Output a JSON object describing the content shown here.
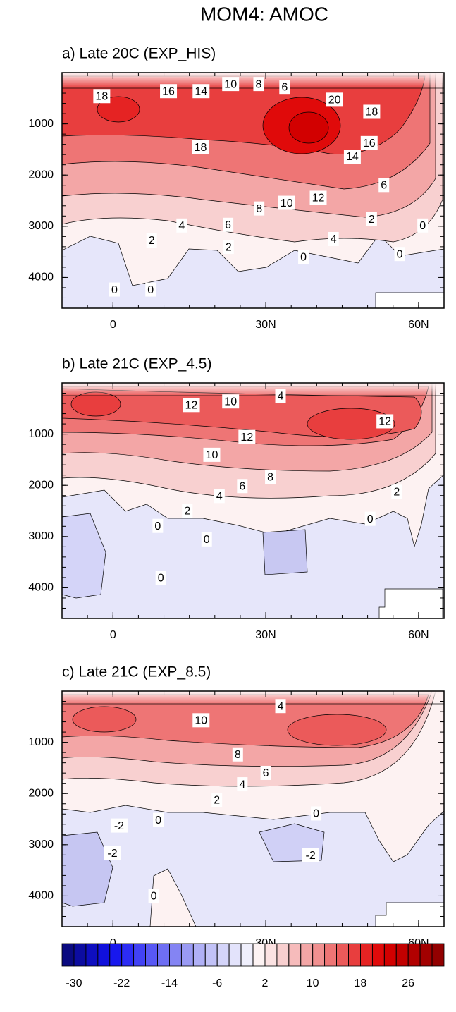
{
  "title": "MOM4: AMOC",
  "chart_data": [
    {
      "type": "contour",
      "title": "a) Late 20C (EXP_HIS)",
      "xlim": [
        -10,
        65
      ],
      "xticks": [
        0,
        {
          "value": 30,
          "label": "30N"
        },
        {
          "value": 60,
          "label": "60N"
        }
      ],
      "ylim": [
        4600,
        0
      ],
      "yticks": [
        1000,
        2000,
        3000,
        4000
      ],
      "contour_labels": [
        {
          "x": -2.2,
          "y": 458,
          "value": 18
        },
        {
          "x": 10.9,
          "y": 361,
          "value": 16
        },
        {
          "x": 17.3,
          "y": 361,
          "value": 14
        },
        {
          "x": 23.1,
          "y": 222,
          "value": 10
        },
        {
          "x": 28.6,
          "y": 222,
          "value": 8
        },
        {
          "x": 33.7,
          "y": 278,
          "value": 6
        },
        {
          "x": 43.5,
          "y": 528,
          "value": 20
        },
        {
          "x": 50.8,
          "y": 764,
          "value": 18
        },
        {
          "x": 50.3,
          "y": 1375,
          "value": 16
        },
        {
          "x": 17.2,
          "y": 1458,
          "value": 18
        },
        {
          "x": 47,
          "y": 1639,
          "value": 14
        },
        {
          "x": 53.2,
          "y": 2194,
          "value": 6
        },
        {
          "x": 40.3,
          "y": 2444,
          "value": 12
        },
        {
          "x": 34.1,
          "y": 2542,
          "value": 10
        },
        {
          "x": 28.7,
          "y": 2653,
          "value": 8
        },
        {
          "x": 13.5,
          "y": 2986,
          "value": 4
        },
        {
          "x": 22.6,
          "y": 2972,
          "value": 6
        },
        {
          "x": 50.8,
          "y": 2861,
          "value": 2
        },
        {
          "x": 43.3,
          "y": 3250,
          "value": 4
        },
        {
          "x": 60.8,
          "y": 2986,
          "value": 0
        },
        {
          "x": 7.6,
          "y": 3278,
          "value": 2
        },
        {
          "x": 56.3,
          "y": 3542,
          "value": 0
        },
        {
          "x": 22.7,
          "y": 3403,
          "value": 2
        },
        {
          "x": 37.4,
          "y": 3597,
          "value": 0
        },
        {
          "x": 0.3,
          "y": 4236,
          "value": 0
        },
        {
          "x": 7.4,
          "y": 4236,
          "value": 0
        }
      ]
    },
    {
      "type": "contour",
      "title": "b) Late 21C (EXP_4.5)",
      "xlim": [
        -10,
        65
      ],
      "xticks": [
        0,
        {
          "value": 30,
          "label": "30N"
        },
        {
          "value": 60,
          "label": "60N"
        }
      ],
      "ylim": [
        4600,
        0
      ],
      "yticks": [
        1000,
        2000,
        3000,
        4000
      ],
      "contour_labels": [
        {
          "x": 15.4,
          "y": 431,
          "value": 12
        },
        {
          "x": 23.1,
          "y": 361,
          "value": 10
        },
        {
          "x": 32.9,
          "y": 250,
          "value": 4
        },
        {
          "x": 53.4,
          "y": 750,
          "value": 12
        },
        {
          "x": 26.3,
          "y": 1056,
          "value": 12
        },
        {
          "x": 19.4,
          "y": 1403,
          "value": 10
        },
        {
          "x": 30.9,
          "y": 1833,
          "value": 8
        },
        {
          "x": 25.4,
          "y": 2014,
          "value": 6
        },
        {
          "x": 20.9,
          "y": 2208,
          "value": 4
        },
        {
          "x": 55.7,
          "y": 2125,
          "value": 2
        },
        {
          "x": 14.6,
          "y": 2500,
          "value": 2
        },
        {
          "x": 50.5,
          "y": 2653,
          "value": 0
        },
        {
          "x": 8.8,
          "y": 2792,
          "value": 0
        },
        {
          "x": 18.4,
          "y": 3056,
          "value": 0
        },
        {
          "x": 9.4,
          "y": 3806,
          "value": 0
        }
      ]
    },
    {
      "type": "contour",
      "title": "c) Late 21C (EXP_8.5)",
      "xlim": [
        -10,
        65
      ],
      "xticks": [
        0,
        {
          "value": 30,
          "label": "30N"
        },
        {
          "value": 60,
          "label": "60N"
        }
      ],
      "ylim": [
        4600,
        0
      ],
      "yticks": [
        1000,
        2000,
        3000,
        4000
      ],
      "contour_labels": [
        {
          "x": 32.9,
          "y": 292,
          "value": 4
        },
        {
          "x": 17.3,
          "y": 569,
          "value": 10
        },
        {
          "x": 24.5,
          "y": 1236,
          "value": 8
        },
        {
          "x": 30,
          "y": 1597,
          "value": 6
        },
        {
          "x": 25.4,
          "y": 1819,
          "value": 4
        },
        {
          "x": 20.4,
          "y": 2125,
          "value": 2
        },
        {
          "x": 8.9,
          "y": 2514,
          "value": 0
        },
        {
          "x": 39.9,
          "y": 2389,
          "value": 0
        },
        {
          "x": 1.2,
          "y": 2625,
          "value": -2
        },
        {
          "x": -0.1,
          "y": 3167,
          "value": -2
        },
        {
          "x": 38.8,
          "y": 3208,
          "value": -2
        },
        {
          "x": 8,
          "y": 4000,
          "value": 0
        }
      ]
    }
  ],
  "colorbar": {
    "levels": [
      -30,
      -28,
      -26,
      -24,
      -22,
      -20,
      -18,
      -16,
      -14,
      -12,
      -10,
      -8,
      -6,
      -4,
      -2,
      0,
      2,
      4,
      6,
      8,
      10,
      12,
      14,
      16,
      18,
      20,
      22,
      24,
      26,
      28,
      30
    ],
    "colors": [
      "#0a0a80",
      "#0c0ca0",
      "#0e0ec0",
      "#1010dc",
      "#1818ee",
      "#2c2cf4",
      "#4242f5",
      "#5858f5",
      "#6e6ef3",
      "#8484f3",
      "#9a9af4",
      "#b0b0f6",
      "#c2c2f7",
      "#d4d4f9",
      "#e3e3fb",
      "#efeffc",
      "#fdf3f3",
      "#fbe2e2",
      "#f8cfcf",
      "#f6bbbb",
      "#f3a6a6",
      "#f19090",
      "#ee7575",
      "#eb5a5a",
      "#e83e3e",
      "#e52323",
      "#e00a0a",
      "#d20000",
      "#c20000",
      "#b20000",
      "#a20000",
      "#920000"
    ],
    "ticks": [
      -30,
      -22,
      -14,
      -6,
      2,
      10,
      18,
      26
    ]
  }
}
